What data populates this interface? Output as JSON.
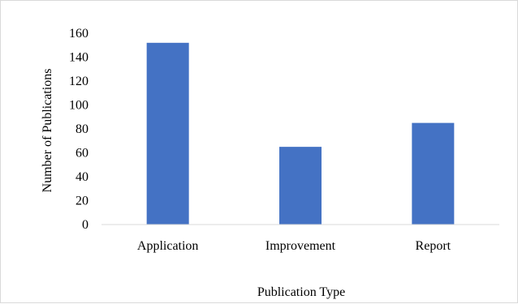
{
  "chart_data": {
    "type": "bar",
    "title": "",
    "xlabel": "Publication Type",
    "ylabel": "Number of Publications",
    "categories": [
      "Application",
      "Improvement",
      "Report"
    ],
    "values": [
      152,
      65,
      85
    ],
    "ylim": [
      0,
      160
    ],
    "yticks": [
      "0",
      "20",
      "40",
      "60",
      "80",
      "100",
      "120",
      "140",
      "160"
    ],
    "bar_color": "#4472c4",
    "grid": false,
    "legend": "none"
  }
}
